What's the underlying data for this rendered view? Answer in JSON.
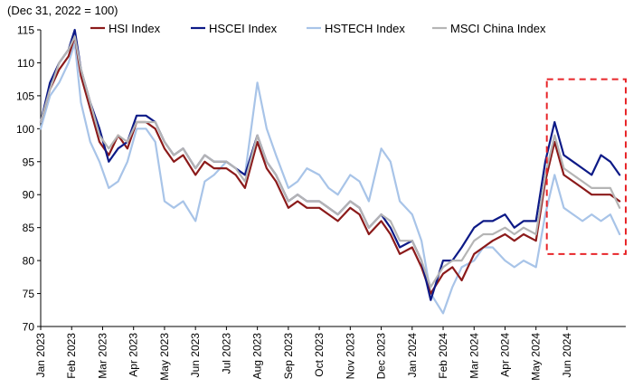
{
  "chart_data": {
    "type": "line",
    "title": "",
    "unit_label": "(Dec 31, 2022 = 100)",
    "xlabel": "",
    "ylabel": "",
    "ylim": [
      70,
      115
    ],
    "yticks": [
      70,
      75,
      80,
      85,
      90,
      95,
      100,
      105,
      110,
      115
    ],
    "x_months": [
      "Jan 2023",
      "Feb 2023",
      "Mar 2023",
      "Apr 2023",
      "May 2023",
      "Jun 2023",
      "Jul 2023",
      "Aug 2023",
      "Sep 2023",
      "Oct 2023",
      "Nov 2023",
      "Dec 2023",
      "Jan 2024",
      "Feb 2024",
      "Mar 2024",
      "Apr 2024",
      "May 2024",
      "Jun 2024"
    ],
    "xlim": [
      0,
      18.9
    ],
    "grid": false,
    "legend_position": "top",
    "highlight_box": {
      "x_range": [
        16.35,
        18.9
      ],
      "y_range": [
        81,
        107.5
      ],
      "color": "#e8262a",
      "style": "dashed"
    },
    "series": [
      {
        "name": "HSI Index",
        "color": "#8b1a1a",
        "x": [
          0,
          0.3,
          0.6,
          0.9,
          1.1,
          1.3,
          1.6,
          1.9,
          2.2,
          2.5,
          2.8,
          3.1,
          3.4,
          3.7,
          4.0,
          4.3,
          4.6,
          5.0,
          5.3,
          5.6,
          6.0,
          6.3,
          6.6,
          7.0,
          7.3,
          7.6,
          8.0,
          8.3,
          8.6,
          9.0,
          9.3,
          9.6,
          10.0,
          10.3,
          10.6,
          11.0,
          11.3,
          11.6,
          12.0,
          12.3,
          12.6,
          13.0,
          13.3,
          13.6,
          14.0,
          14.3,
          14.6,
          15.0,
          15.3,
          15.6,
          16.0,
          16.3,
          16.6,
          16.9,
          17.2,
          17.5,
          17.8,
          18.1,
          18.4,
          18.7
        ],
        "y": [
          101,
          106,
          109,
          111,
          114,
          108,
          103,
          98,
          96,
          99,
          97,
          101,
          101,
          100,
          97,
          95,
          96,
          93,
          95,
          94,
          94,
          93,
          91,
          98,
          94,
          92,
          88,
          89,
          88,
          88,
          87,
          86,
          88,
          87,
          84,
          86,
          84,
          81,
          82,
          79,
          75,
          78,
          79,
          77,
          81,
          82,
          83,
          84,
          83,
          84,
          83,
          92,
          98,
          93,
          92,
          91,
          90,
          90,
          90,
          89
        ]
      },
      {
        "name": "HSCEI Index",
        "color": "#0d1a87",
        "x": [
          0,
          0.3,
          0.6,
          0.9,
          1.1,
          1.3,
          1.6,
          1.9,
          2.2,
          2.5,
          2.8,
          3.1,
          3.4,
          3.7,
          4.0,
          4.3,
          4.6,
          5.0,
          5.3,
          5.6,
          6.0,
          6.3,
          6.6,
          7.0,
          7.3,
          7.6,
          8.0,
          8.3,
          8.6,
          9.0,
          9.3,
          9.6,
          10.0,
          10.3,
          10.6,
          11.0,
          11.3,
          11.6,
          12.0,
          12.3,
          12.6,
          13.0,
          13.3,
          13.6,
          14.0,
          14.3,
          14.6,
          15.0,
          15.3,
          15.6,
          16.0,
          16.3,
          16.6,
          16.9,
          17.2,
          17.5,
          17.8,
          18.1,
          18.4,
          18.7
        ],
        "y": [
          101,
          107,
          110,
          112,
          115,
          109,
          104,
          100,
          95,
          97,
          98,
          102,
          102,
          101,
          98,
          96,
          97,
          94,
          96,
          95,
          95,
          94,
          93,
          99,
          95,
          93,
          89,
          90,
          89,
          89,
          88,
          87,
          89,
          88,
          85,
          87,
          85,
          82,
          83,
          80,
          74,
          80,
          80,
          82,
          85,
          86,
          86,
          87,
          85,
          86,
          86,
          95,
          101,
          96,
          95,
          94,
          93,
          96,
          95,
          93
        ]
      },
      {
        "name": "HSTECH Index",
        "color": "#a8c4e8",
        "x": [
          0,
          0.3,
          0.6,
          0.9,
          1.1,
          1.3,
          1.6,
          1.9,
          2.2,
          2.5,
          2.8,
          3.1,
          3.4,
          3.7,
          4.0,
          4.3,
          4.6,
          5.0,
          5.3,
          5.6,
          6.0,
          6.3,
          6.6,
          7.0,
          7.3,
          7.6,
          8.0,
          8.3,
          8.6,
          9.0,
          9.3,
          9.6,
          10.0,
          10.3,
          10.6,
          11.0,
          11.3,
          11.6,
          12.0,
          12.3,
          12.6,
          13.0,
          13.3,
          13.6,
          14.0,
          14.3,
          14.6,
          15.0,
          15.3,
          15.6,
          16.0,
          16.3,
          16.6,
          16.9,
          17.2,
          17.5,
          17.8,
          18.1,
          18.4,
          18.7
        ],
        "y": [
          100,
          105,
          107,
          110,
          113,
          104,
          98,
          95,
          91,
          92,
          95,
          100,
          100,
          98,
          89,
          88,
          89,
          86,
          92,
          93,
          95,
          94,
          93,
          107,
          100,
          96,
          91,
          92,
          94,
          93,
          91,
          90,
          93,
          92,
          89,
          97,
          95,
          89,
          87,
          83,
          75,
          72,
          76,
          79,
          80,
          82,
          82,
          80,
          79,
          80,
          79,
          87,
          93,
          88,
          87,
          86,
          87,
          86,
          87,
          84
        ]
      },
      {
        "name": "MSCI China Index",
        "color": "#b5b5b5",
        "x": [
          0,
          0.3,
          0.6,
          0.9,
          1.1,
          1.3,
          1.6,
          1.9,
          2.2,
          2.5,
          2.8,
          3.1,
          3.4,
          3.7,
          4.0,
          4.3,
          4.6,
          5.0,
          5.3,
          5.6,
          6.0,
          6.3,
          6.6,
          7.0,
          7.3,
          7.6,
          8.0,
          8.3,
          8.6,
          9.0,
          9.3,
          9.6,
          10.0,
          10.3,
          10.6,
          11.0,
          11.3,
          11.6,
          12.0,
          12.3,
          12.6,
          13.0,
          13.3,
          13.6,
          14.0,
          14.3,
          14.6,
          15.0,
          15.3,
          15.6,
          16.0,
          16.3,
          16.6,
          16.9,
          17.2,
          17.5,
          17.8,
          18.1,
          18.4,
          18.7
        ],
        "y": [
          101,
          106,
          110,
          112,
          114,
          109,
          104,
          99,
          97,
          99,
          98,
          101,
          101,
          101,
          98,
          96,
          97,
          94,
          96,
          95,
          95,
          94,
          92,
          99,
          95,
          93,
          89,
          90,
          89,
          89,
          88,
          87,
          89,
          88,
          85,
          87,
          86,
          83,
          83,
          80,
          76,
          79,
          80,
          80,
          83,
          84,
          84,
          85,
          84,
          85,
          84,
          93,
          99,
          94,
          93,
          92,
          91,
          91,
          91,
          88
        ]
      }
    ]
  }
}
